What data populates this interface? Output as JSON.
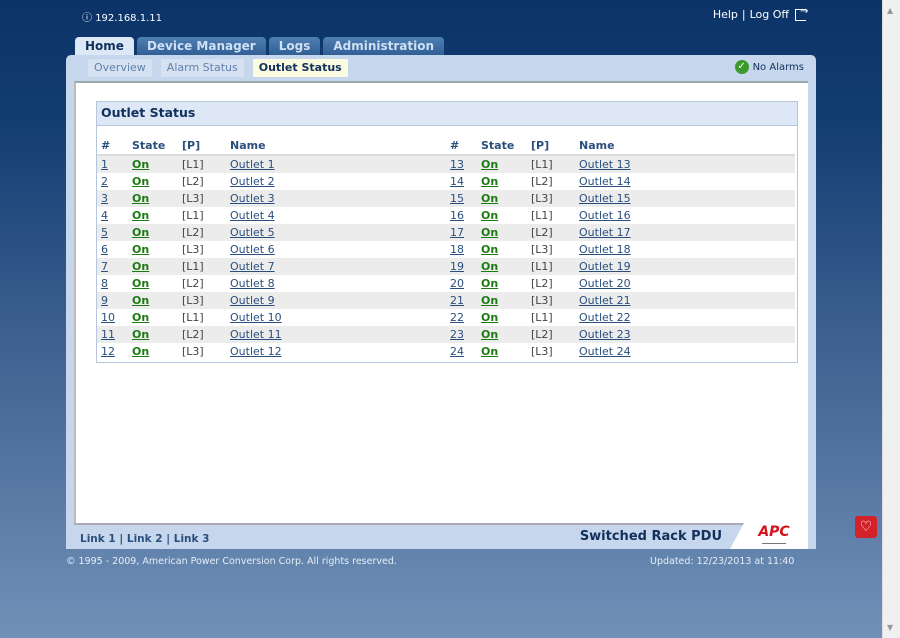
{
  "header": {
    "ip": "192.168.1.11",
    "help": "Help",
    "separator": "|",
    "logoff": "Log Off"
  },
  "tabs": [
    "Home",
    "Device Manager",
    "Logs",
    "Administration"
  ],
  "subtabs": [
    "Overview",
    "Alarm Status",
    "Outlet Status"
  ],
  "alarm_status": "No Alarms",
  "box_title": "Outlet Status",
  "columns": {
    "num": "#",
    "state": "State",
    "phase": "[P]",
    "name": "Name"
  },
  "outlets": [
    {
      "num": "1",
      "state": "On",
      "phase": "[L1]",
      "name": "Outlet 1"
    },
    {
      "num": "2",
      "state": "On",
      "phase": "[L2]",
      "name": "Outlet 2"
    },
    {
      "num": "3",
      "state": "On",
      "phase": "[L3]",
      "name": "Outlet 3"
    },
    {
      "num": "4",
      "state": "On",
      "phase": "[L1]",
      "name": "Outlet 4"
    },
    {
      "num": "5",
      "state": "On",
      "phase": "[L2]",
      "name": "Outlet 5"
    },
    {
      "num": "6",
      "state": "On",
      "phase": "[L3]",
      "name": "Outlet 6"
    },
    {
      "num": "7",
      "state": "On",
      "phase": "[L1]",
      "name": "Outlet 7"
    },
    {
      "num": "8",
      "state": "On",
      "phase": "[L2]",
      "name": "Outlet 8"
    },
    {
      "num": "9",
      "state": "On",
      "phase": "[L3]",
      "name": "Outlet 9"
    },
    {
      "num": "10",
      "state": "On",
      "phase": "[L1]",
      "name": "Outlet 10"
    },
    {
      "num": "11",
      "state": "On",
      "phase": "[L2]",
      "name": "Outlet 11"
    },
    {
      "num": "12",
      "state": "On",
      "phase": "[L3]",
      "name": "Outlet 12"
    },
    {
      "num": "13",
      "state": "On",
      "phase": "[L1]",
      "name": "Outlet 13"
    },
    {
      "num": "14",
      "state": "On",
      "phase": "[L2]",
      "name": "Outlet 14"
    },
    {
      "num": "15",
      "state": "On",
      "phase": "[L3]",
      "name": "Outlet 15"
    },
    {
      "num": "16",
      "state": "On",
      "phase": "[L1]",
      "name": "Outlet 16"
    },
    {
      "num": "17",
      "state": "On",
      "phase": "[L2]",
      "name": "Outlet 17"
    },
    {
      "num": "18",
      "state": "On",
      "phase": "[L3]",
      "name": "Outlet 18"
    },
    {
      "num": "19",
      "state": "On",
      "phase": "[L1]",
      "name": "Outlet 19"
    },
    {
      "num": "20",
      "state": "On",
      "phase": "[L2]",
      "name": "Outlet 20"
    },
    {
      "num": "21",
      "state": "On",
      "phase": "[L3]",
      "name": "Outlet 21"
    },
    {
      "num": "22",
      "state": "On",
      "phase": "[L1]",
      "name": "Outlet 22"
    },
    {
      "num": "23",
      "state": "On",
      "phase": "[L2]",
      "name": "Outlet 23"
    },
    {
      "num": "24",
      "state": "On",
      "phase": "[L3]",
      "name": "Outlet 24"
    }
  ],
  "footer": {
    "links": [
      "Link 1",
      "Link 2",
      "Link 3"
    ],
    "product": "Switched Rack PDU",
    "logo": "APC",
    "copyright": "© 1995 - 2009, American Power Conversion Corp. All rights reserved.",
    "updated": "Updated: 12/23/2013 at 11:40"
  },
  "colors": {
    "on": "#1c7a12",
    "brand": "#d3121a",
    "nav": "#0b3368"
  }
}
